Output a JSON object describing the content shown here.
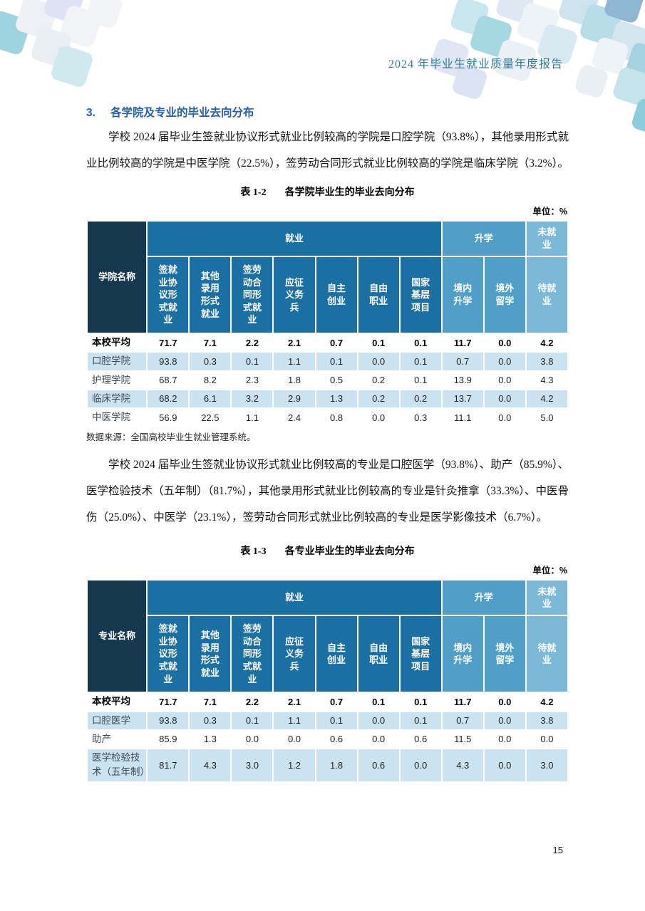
{
  "page": {
    "header_title": "2024 年毕业生就业质量年度报告",
    "page_number": "15"
  },
  "section": {
    "number": "3.",
    "title": "各学院及专业的毕业去向分布",
    "paragraph1": "学校 2024 届毕业生签就业协议形式就业比例较高的学院是口腔学院（93.8%），其他录用形式就业比例较高的学院是中医学院（22.5%），签劳动合同形式就业比例较高的学院是临床学院（3.2%）。",
    "paragraph2": "学校 2024 届毕业生签就业协议形式就业比例较高的专业是口腔医学（93.8%）、助产（85.9%）、医学检验技术（五年制）（81.7%），其他录用形式就业比例较高的专业是针灸推拿（33.3%）、中医骨伤（25.0%）、中医学（23.1%），签劳动合同形式就业比例较高的专业是医学影像技术（6.7%）。"
  },
  "table1": {
    "caption_label": "表 1-2",
    "caption_title": "各学院毕业生的毕业去向分布",
    "unit": "单位：%",
    "first_col_header": "学院名称",
    "group_headers": [
      "就业",
      "升学",
      "未就业"
    ],
    "sub_headers": [
      "签就业协议形式就业",
      "其他录用形式就业",
      "签劳动合同形式就业",
      "应征义务兵",
      "自主创业",
      "自由职业",
      "国家基层项目",
      "境内升学",
      "境外留学",
      "待就业"
    ],
    "rows": [
      {
        "label": "本校平均",
        "values": [
          "71.7",
          "7.1",
          "2.2",
          "2.1",
          "0.7",
          "0.1",
          "0.1",
          "11.7",
          "0.0",
          "4.2"
        ]
      },
      {
        "label": "口腔学院",
        "values": [
          "93.8",
          "0.3",
          "0.1",
          "1.1",
          "0.1",
          "0.0",
          "0.1",
          "0.7",
          "0.0",
          "3.8"
        ]
      },
      {
        "label": "护理学院",
        "values": [
          "68.7",
          "8.2",
          "2.3",
          "1.8",
          "0.5",
          "0.2",
          "0.1",
          "13.9",
          "0.0",
          "4.3"
        ]
      },
      {
        "label": "临床学院",
        "values": [
          "68.2",
          "6.1",
          "3.2",
          "2.9",
          "1.3",
          "0.2",
          "0.2",
          "13.7",
          "0.0",
          "4.2"
        ]
      },
      {
        "label": "中医学院",
        "values": [
          "56.9",
          "22.5",
          "1.1",
          "2.4",
          "0.8",
          "0.0",
          "0.3",
          "11.1",
          "0.0",
          "5.0"
        ]
      }
    ],
    "source": "数据来源：全国高校毕业生就业管理系统。"
  },
  "table2": {
    "caption_label": "表 1-3",
    "caption_title": "各专业毕业生的毕业去向分布",
    "unit": "单位：%",
    "first_col_header": "专业名称",
    "group_headers": [
      "就业",
      "升学",
      "未就业"
    ],
    "sub_headers": [
      "签就业协议形式就业",
      "其他录用形式就业",
      "签劳动合同形式就业",
      "应征义务兵",
      "自主创业",
      "自由职业",
      "国家基层项目",
      "境内升学",
      "境外留学",
      "待就业"
    ],
    "rows": [
      {
        "label": "本校平均",
        "values": [
          "71.7",
          "7.1",
          "2.2",
          "2.1",
          "0.7",
          "0.1",
          "0.1",
          "11.7",
          "0.0",
          "4.2"
        ]
      },
      {
        "label": "口腔医学",
        "values": [
          "93.8",
          "0.3",
          "0.1",
          "1.1",
          "0.1",
          "0.0",
          "0.1",
          "0.7",
          "0.0",
          "3.8"
        ]
      },
      {
        "label": "助产",
        "values": [
          "85.9",
          "1.3",
          "0.0",
          "0.0",
          "0.6",
          "0.0",
          "0.6",
          "11.5",
          "0.0",
          "0.0"
        ]
      },
      {
        "label": "医学检验技术（五年制）",
        "values": [
          "81.7",
          "4.3",
          "3.0",
          "1.2",
          "1.8",
          "0.6",
          "0.0",
          "4.3",
          "0.0",
          "3.0"
        ]
      }
    ]
  },
  "colors": {
    "header_title_teal": "#2e7d9e",
    "section_heading_blue": "#2461a9",
    "table_name_column": "#16384f",
    "table_employment_blue": "#1a6fa3",
    "table_further_study_blue": "#4f9fc9",
    "table_unemployed_blue": "#7cb8d8",
    "row_stripe_blue": "#cbe3f0"
  }
}
